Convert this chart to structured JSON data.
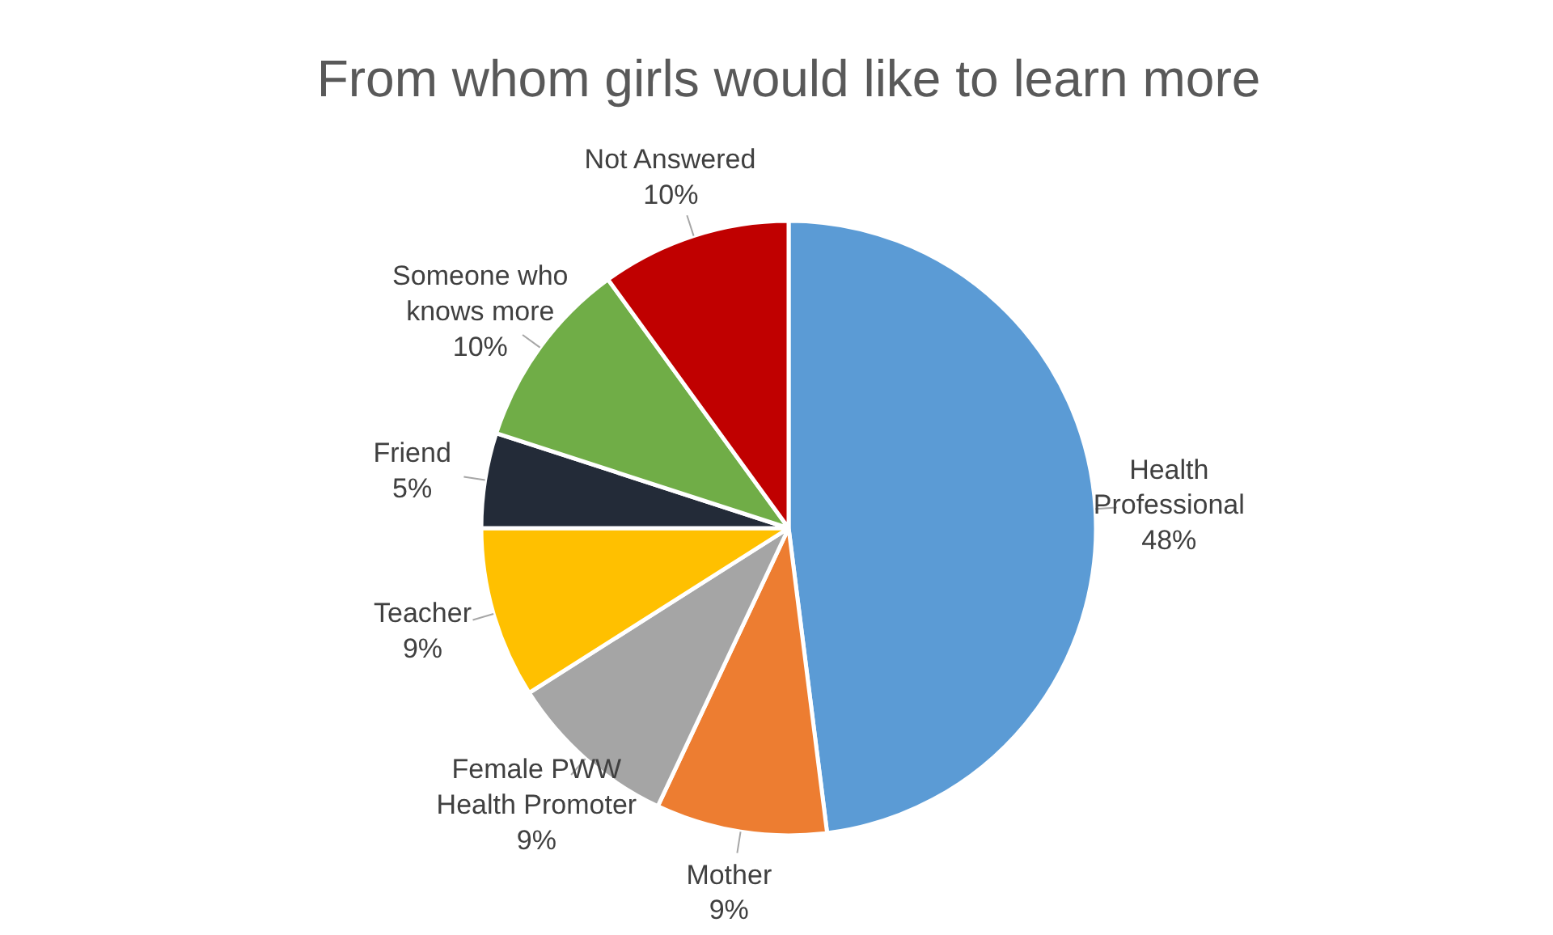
{
  "chart_data": {
    "type": "pie",
    "title": "From whom girls would like to learn more",
    "categories": [
      "Health Professional",
      "Mother",
      "Female PWW Health Promoter",
      "Teacher",
      "Friend",
      "Someone who knows more",
      "Not Answered"
    ],
    "values": [
      48,
      9,
      9,
      9,
      5,
      10,
      10
    ],
    "value_labels": [
      "48%",
      "9%",
      "9%",
      "9%",
      "5%",
      "10%",
      "10%"
    ],
    "colors": [
      "#5b9bd5",
      "#ed7d31",
      "#a5a5a5",
      "#ffc000",
      "#232b38",
      "#70ad47",
      "#c00000"
    ]
  }
}
